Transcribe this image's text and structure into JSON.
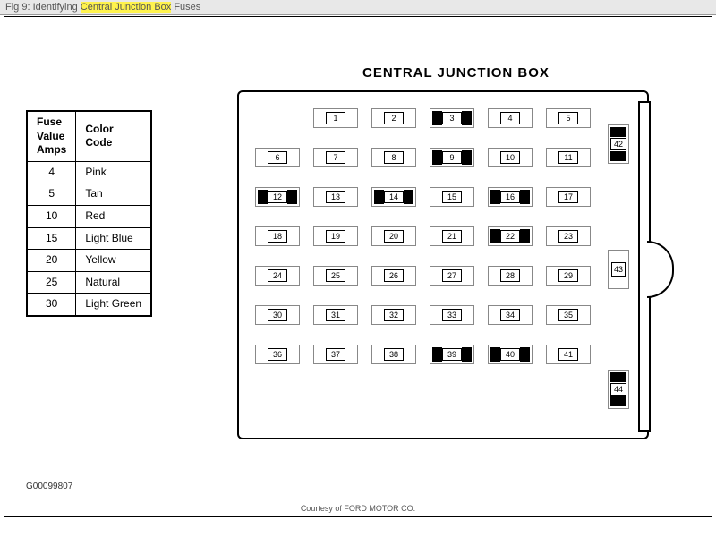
{
  "titlebar": {
    "prefix": "Fig 9: Identifying ",
    "highlight": "Central Junction Box",
    "suffix": " Fuses"
  },
  "jbox_title": "CENTRAL JUNCTION BOX",
  "legend": {
    "header_left": "Fuse\nValue\nAmps",
    "header_right": "Color\nCode",
    "rows": [
      {
        "amps": "4",
        "color": "Pink"
      },
      {
        "amps": "5",
        "color": "Tan"
      },
      {
        "amps": "10",
        "color": "Red"
      },
      {
        "amps": "15",
        "color": "Light Blue"
      },
      {
        "amps": "20",
        "color": "Yellow"
      },
      {
        "amps": "25",
        "color": "Natural"
      },
      {
        "amps": "30",
        "color": "Light Green"
      }
    ]
  },
  "fuses": {
    "layout": "grid-6x7-with-row1-offset",
    "black_positions": [
      3,
      9,
      12,
      14,
      16,
      22,
      39,
      40
    ],
    "side": [
      {
        "num": 42,
        "black": true
      },
      {
        "num": 43,
        "black": false
      },
      {
        "num": 44,
        "black": true
      }
    ]
  },
  "docid": "G00099807",
  "credit": "Courtesy of FORD MOTOR CO.",
  "colors": {
    "highlight": "#fff34d",
    "border": "#000000",
    "fuse_outline": "#888888",
    "background": "#ffffff",
    "titlebar_bg": "#e8e8e8"
  }
}
